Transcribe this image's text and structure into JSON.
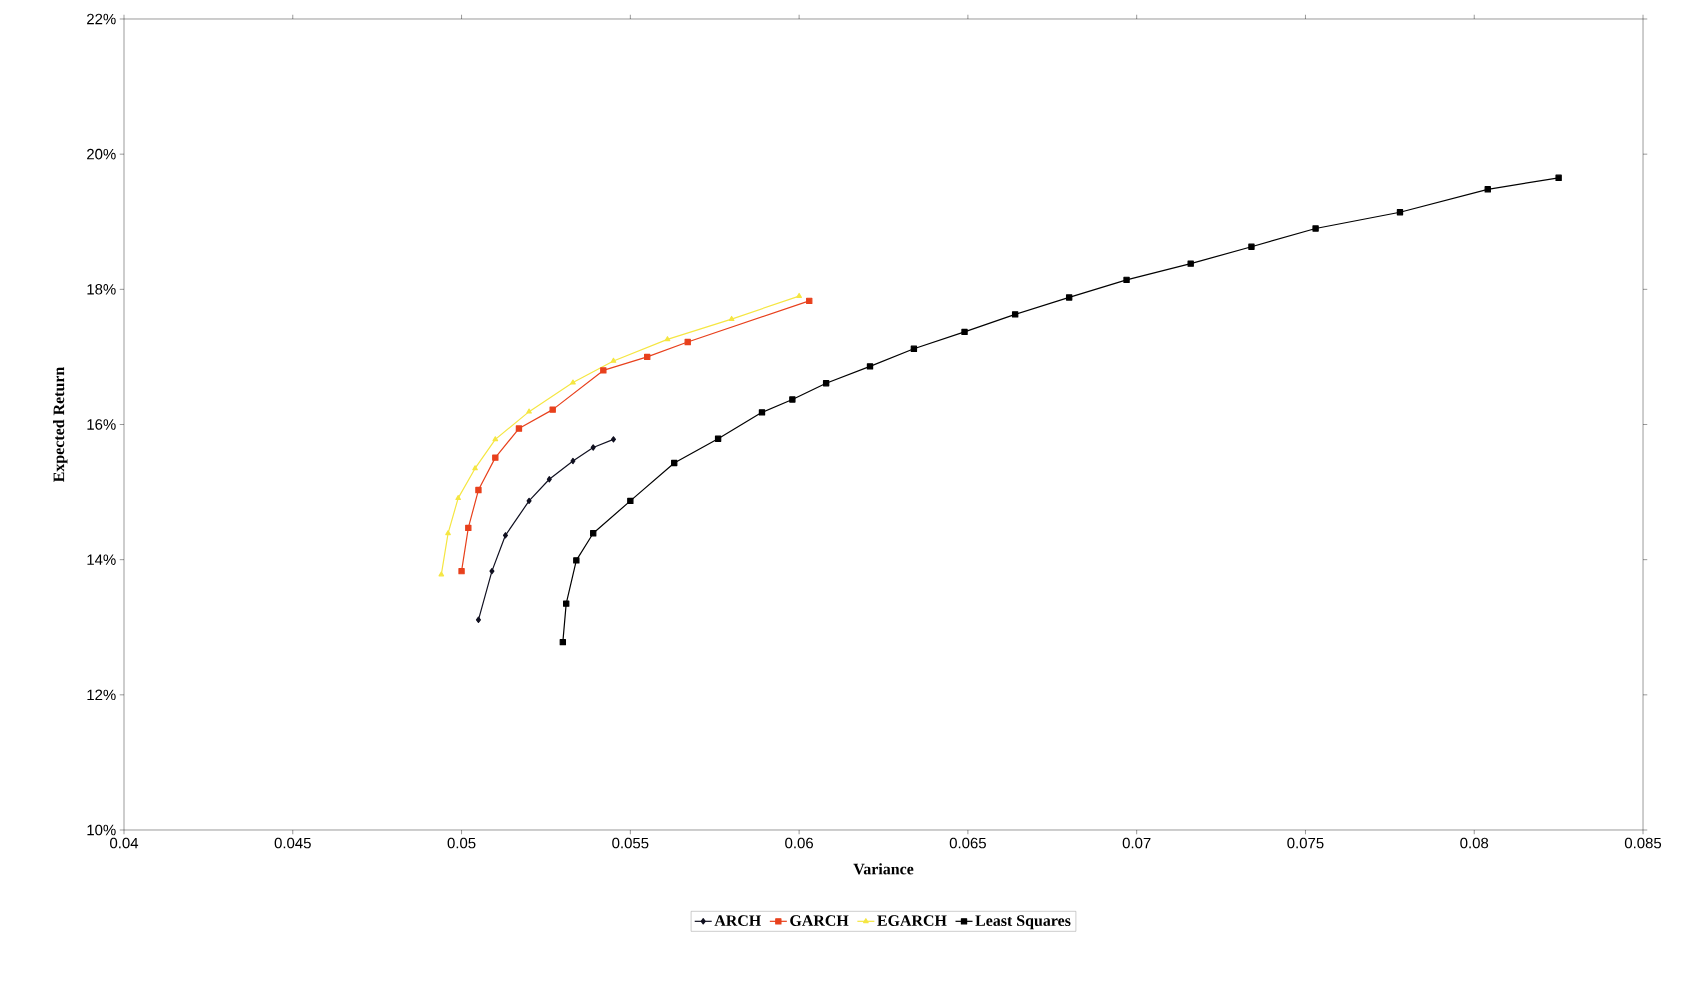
{
  "chart_data": {
    "type": "line",
    "xlabel": "Variance",
    "ylabel": "Expected Return",
    "xlim": [
      0.04,
      0.085
    ],
    "xticks": [
      0.04,
      0.045,
      0.05,
      0.055,
      0.06,
      0.065,
      0.07,
      0.075,
      0.08,
      0.085
    ],
    "ylim": [
      10,
      22
    ],
    "yticks": [
      {
        "value": 10,
        "label": "10%"
      },
      {
        "value": 12,
        "label": "12%"
      },
      {
        "value": 14,
        "label": "14%"
      },
      {
        "value": 16,
        "label": "16%"
      },
      {
        "value": 18,
        "label": "18%"
      },
      {
        "value": 20,
        "label": "20%"
      },
      {
        "value": 22,
        "label": "22%"
      }
    ],
    "grid": false,
    "legend": "bottom",
    "line_style": "solid",
    "series": [
      {
        "name": "ARCH",
        "color": "#101020",
        "marker": "diamond",
        "x": [
          0.0505,
          0.0509,
          0.0513,
          0.052,
          0.0526,
          0.0533,
          0.0539,
          0.0545
        ],
        "values": [
          13.11,
          13.83,
          14.36,
          14.87,
          15.19,
          15.46,
          15.66,
          15.78
        ]
      },
      {
        "name": "GARCH",
        "color": "#e8401c",
        "marker": "square",
        "x": [
          0.05,
          0.0502,
          0.0505,
          0.051,
          0.0517,
          0.0527,
          0.0542,
          0.0555,
          0.0567,
          0.0603
        ],
        "values": [
          13.83,
          14.47,
          15.03,
          15.51,
          15.94,
          16.22,
          16.8,
          17.0,
          17.22,
          17.83
        ]
      },
      {
        "name": "EGARCH",
        "color": "#f5e642",
        "marker": "triangle",
        "x": [
          0.0494,
          0.0496,
          0.0499,
          0.0504,
          0.051,
          0.052,
          0.0533,
          0.0545,
          0.0561,
          0.058,
          0.06
        ],
        "values": [
          13.78,
          14.39,
          14.91,
          15.35,
          15.78,
          16.19,
          16.62,
          16.94,
          17.26,
          17.56,
          17.9
        ]
      },
      {
        "name": "Least Squares",
        "color": "#000000",
        "marker": "square",
        "x": [
          0.053,
          0.0531,
          0.0534,
          0.0539,
          0.055,
          0.0563,
          0.0576,
          0.0589,
          0.0598,
          0.0608,
          0.0621,
          0.0634,
          0.0649,
          0.0664,
          0.068,
          0.0697,
          0.0716,
          0.0734,
          0.0753,
          0.0778,
          0.0804,
          0.0825
        ],
        "values": [
          12.78,
          13.35,
          13.99,
          14.39,
          14.87,
          15.43,
          15.79,
          16.18,
          16.37,
          16.61,
          16.86,
          17.12,
          17.37,
          17.63,
          17.88,
          18.14,
          18.38,
          18.63,
          18.9,
          19.14,
          19.48,
          19.65
        ]
      }
    ]
  }
}
